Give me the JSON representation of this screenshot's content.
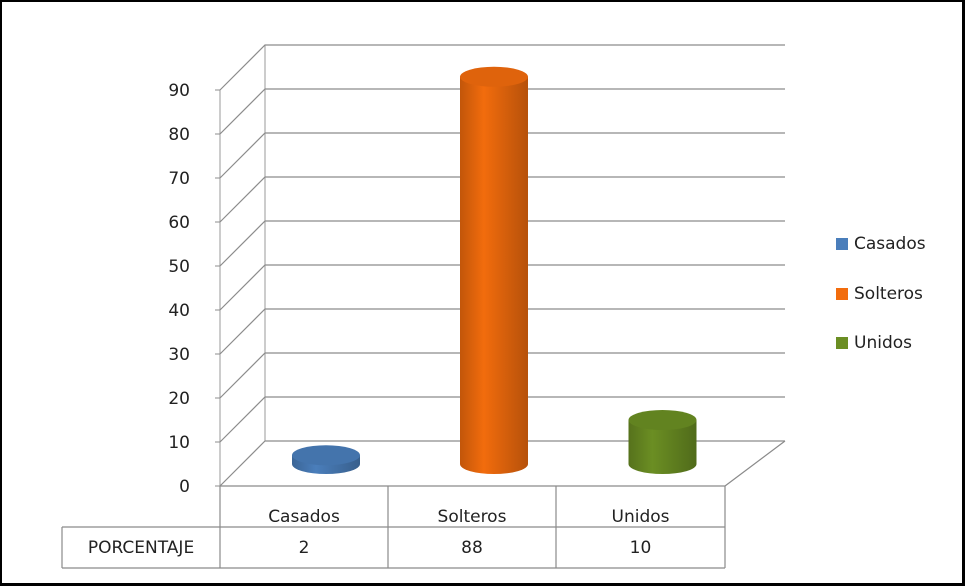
{
  "chart_data": {
    "type": "bar",
    "categories": [
      "Casados",
      "Solteros",
      "Unidos"
    ],
    "series": [
      {
        "values": [
          2,
          88,
          10
        ]
      }
    ],
    "colors": [
      "#4a7ebb",
      "#f26c0d",
      "#6b8e23"
    ],
    "ylim": [
      0,
      90
    ],
    "yticks": [
      0,
      10,
      20,
      30,
      40,
      50,
      60,
      70,
      80,
      90
    ],
    "grid": true,
    "legend": {
      "position": "right",
      "entries": [
        "Casados",
        "Solteros",
        "Unidos"
      ]
    },
    "data_table": {
      "row_label": "PORCENTAJE",
      "values": [
        "2",
        "88",
        "10"
      ]
    }
  }
}
